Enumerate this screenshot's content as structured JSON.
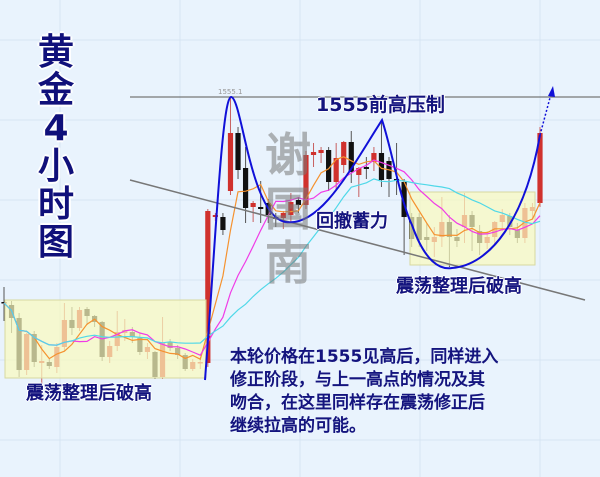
{
  "title_chars": [
    "黄",
    "金",
    "4",
    "小",
    "时",
    "图"
  ],
  "watermark_chars": [
    "谢",
    "国",
    "南"
  ],
  "chart_data": {
    "type": "candlestick",
    "title": "黄金4小时图",
    "price_label": "1555.1",
    "resistance_level": 1555.1,
    "grid": true,
    "colors": {
      "up": "#d0312d",
      "down": "#111111",
      "ma_fast": "#f5922f",
      "ma_mid": "#f03ce6",
      "ma_slow": "#4fd8e8",
      "curve": "#1010d8",
      "trendline": "#777777",
      "box": "#fafabe",
      "background": "#e9f3fd"
    },
    "candles_ohlc": [
      [
        1452.5,
        1460,
        1443,
        1452
      ],
      [
        1451,
        1453,
        1437,
        1444.5
      ],
      [
        1444.5,
        1447,
        1415,
        1418.5
      ],
      [
        1418.5,
        1437,
        1416,
        1436.5
      ],
      [
        1436.5,
        1438,
        1420,
        1422.5
      ],
      [
        1422,
        1431,
        1411,
        1423
      ],
      [
        1422.5,
        1424,
        1419,
        1420.5
      ],
      [
        1420,
        1432,
        1417,
        1430
      ],
      [
        1430,
        1452,
        1428,
        1443.5
      ],
      [
        1443.5,
        1450,
        1436,
        1439.5
      ],
      [
        1439.5,
        1450,
        1438,
        1448.5
      ],
      [
        1449,
        1450,
        1441,
        1445.5
      ],
      [
        1445.5,
        1446,
        1440,
        1442.5
      ],
      [
        1442.5,
        1443,
        1423,
        1425
      ],
      [
        1425,
        1433,
        1422,
        1430.5
      ],
      [
        1430.5,
        1448,
        1428,
        1437.5
      ],
      [
        1437,
        1444,
        1433,
        1438.5
      ],
      [
        1437.5,
        1440,
        1432,
        1435
      ],
      [
        1434.5,
        1437,
        1426,
        1427.5
      ],
      [
        1427.5,
        1432,
        1424,
        1430
      ],
      [
        1427.5,
        1428,
        1414,
        1415
      ],
      [
        1415,
        1445,
        1414,
        1432
      ],
      [
        1432.5,
        1434,
        1428,
        1429.5
      ],
      [
        1429.5,
        1431,
        1424,
        1426
      ],
      [
        1426,
        1427,
        1418,
        1419
      ],
      [
        1419,
        1424,
        1418,
        1422.5
      ],
      [
        1422,
        1425,
        1419,
        1422.5
      ],
      [
        1422,
        1499,
        1420,
        1498
      ],
      [
        1495,
        1497,
        1493,
        1496
      ],
      [
        1495,
        1497,
        1486,
        1488.5
      ],
      [
        1508,
        1555.1,
        1506,
        1537
      ],
      [
        1537,
        1540,
        1514,
        1518.5
      ],
      [
        1519.5,
        1530,
        1492,
        1499.5
      ],
      [
        1500,
        1503,
        1492.5,
        1502
      ],
      [
        1500,
        1513,
        1492,
        1499
      ],
      [
        1502,
        1504,
        1492,
        1496
      ],
      [
        1495,
        1497,
        1490,
        1494
      ],
      [
        1494.5,
        1498,
        1489,
        1497
      ],
      [
        1496,
        1507,
        1492,
        1502.5
      ],
      [
        1503.5,
        1505,
        1497,
        1501
      ],
      [
        1501,
        1528,
        1499,
        1526
      ],
      [
        1526,
        1532,
        1520,
        1527.5
      ],
      [
        1527,
        1530,
        1522,
        1528.5
      ],
      [
        1528.5,
        1530,
        1508,
        1512.5
      ],
      [
        1512.5,
        1532,
        1508,
        1524.5
      ],
      [
        1521,
        1533,
        1517,
        1532.5
      ],
      [
        1532.5,
        1538,
        1512,
        1517.5
      ],
      [
        1516,
        1520,
        1505,
        1519.5
      ],
      [
        1520,
        1525,
        1514,
        1519
      ],
      [
        1522.5,
        1530,
        1518,
        1527
      ],
      [
        1527,
        1543.5,
        1510,
        1513.5
      ],
      [
        1523,
        1525,
        1505,
        1514
      ],
      [
        1514,
        1532,
        1506,
        1513.5
      ],
      [
        1512.5,
        1514,
        1476,
        1495
      ],
      [
        1495,
        1497,
        1480,
        1484
      ],
      [
        1495,
        1497,
        1480,
        1483.5
      ],
      [
        1485,
        1492,
        1478,
        1483.5
      ],
      [
        1482.5,
        1490,
        1475,
        1485
      ],
      [
        1485,
        1505,
        1480,
        1492.5
      ],
      [
        1492.5,
        1496,
        1470,
        1485
      ],
      [
        1485,
        1489,
        1480,
        1483
      ],
      [
        1490,
        1507,
        1482,
        1496
      ],
      [
        1496,
        1498,
        1478,
        1490
      ],
      [
        1488,
        1491,
        1476,
        1482
      ],
      [
        1482,
        1488,
        1479,
        1485
      ],
      [
        1485,
        1493,
        1481,
        1492.5
      ],
      [
        1492.5,
        1499,
        1488,
        1496
      ],
      [
        1495.5,
        1497,
        1486,
        1490
      ],
      [
        1488.5,
        1492,
        1482,
        1484.5
      ],
      [
        1484.5,
        1502,
        1482,
        1499.5
      ],
      [
        1498,
        1502,
        1494,
        1500
      ],
      [
        1502,
        1540,
        1500,
        1537
      ]
    ],
    "annotations": {
      "resistance": "1555前高压制",
      "pullback": "回撤蓄力",
      "breakout_right": "震荡整理后破高",
      "breakout_left": "震荡整理后破高"
    }
  },
  "commentary": [
    "本轮价格在1555见高后，同样进入",
    "修正阶段，与上一高点的情况及其",
    "吻合，在这里同样存在震荡修正后",
    "继续拉高的可能。"
  ]
}
